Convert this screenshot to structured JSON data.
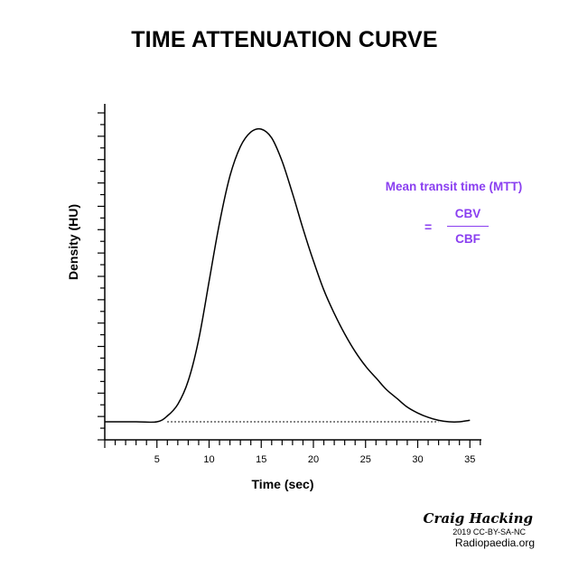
{
  "chart_data": {
    "type": "line",
    "title": "TIME ATTENUATION CURVE",
    "xlabel": "Time (sec)",
    "ylabel": "Density (HU)",
    "xlim": [
      0,
      36
    ],
    "x_ticks": [
      5,
      10,
      15,
      20,
      25,
      30,
      35
    ],
    "y_tick_count": 14,
    "baseline": {
      "x_start": 6,
      "x_end": 32,
      "style": "dotted"
    },
    "series": [
      {
        "x": [
          0,
          3,
          5,
          6,
          7,
          8,
          9,
          10,
          11,
          12,
          13,
          14,
          15,
          16,
          17,
          18,
          19,
          20,
          21,
          22,
          23,
          24,
          25,
          26,
          27,
          28,
          29,
          30,
          31,
          32,
          33,
          34,
          35
        ],
        "y": [
          0,
          0,
          0,
          0.02,
          0.06,
          0.14,
          0.28,
          0.48,
          0.68,
          0.84,
          0.94,
          0.99,
          1.0,
          0.97,
          0.89,
          0.78,
          0.66,
          0.55,
          0.45,
          0.37,
          0.3,
          0.24,
          0.19,
          0.15,
          0.11,
          0.08,
          0.05,
          0.03,
          0.015,
          0.005,
          0,
          0,
          0.005
        ]
      }
    ]
  },
  "annotation": {
    "label": "Mean transit time (MTT)",
    "equals": "=",
    "numerator": "CBV",
    "denominator": "CBF",
    "color": "#8a3ff0"
  },
  "credit": {
    "author": "Craig Hacking",
    "license": "2019 CC-BY-SA-NC",
    "site": "Radiopaedia.org"
  }
}
